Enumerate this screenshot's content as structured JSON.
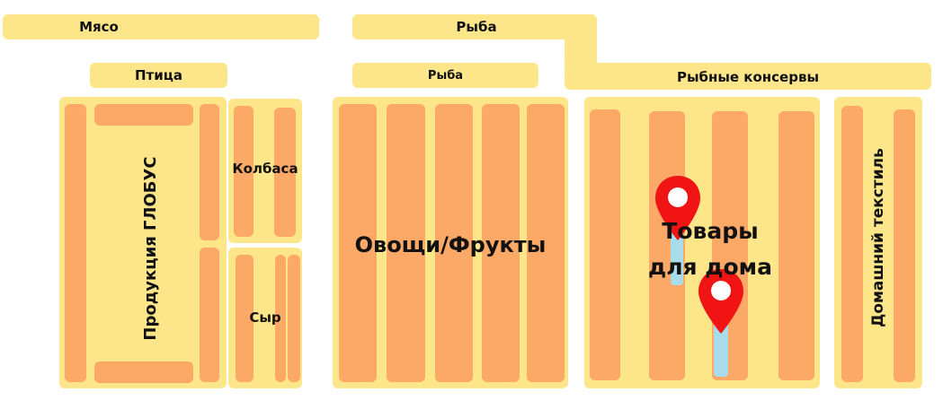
{
  "sections": {
    "meat": "Мясо",
    "fish_top": "Рыба",
    "poultry": "Птица",
    "fish": "Рыба",
    "canned_fish": "Рыбные консервы",
    "globus": "Продукция ГЛОБУС",
    "sausage": "Колбаса",
    "cheese": "Сыр",
    "produce": "Овощи/Фрукты",
    "home_goods_line1": "Товары",
    "home_goods_line2": "для дома",
    "home_textile": "Домашний текстиль"
  },
  "colors": {
    "zone": "#fde68a",
    "shelf": "#fca866",
    "pin": "#f01414",
    "route": "#a8dcea"
  },
  "icons": [
    "map-pin-icon",
    "map-pin-icon"
  ]
}
